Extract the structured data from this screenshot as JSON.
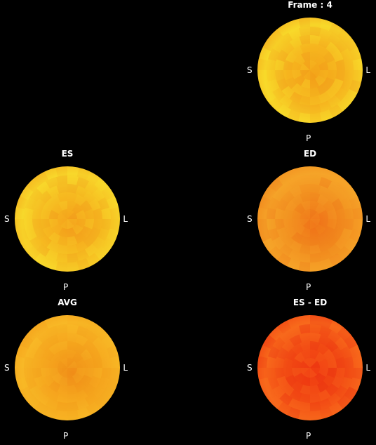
{
  "panels": [
    {
      "id": "frame",
      "title": "Frame : 4",
      "labels": {
        "s": "S",
        "l": "L",
        "p": "P"
      },
      "colors": {
        "base": "#f6b51f",
        "light": "#f8da2a",
        "dark": "#f09a1c",
        "hot": "#f4a018"
      }
    },
    {
      "id": "es",
      "title": "ES",
      "labels": {
        "s": "S",
        "l": "L",
        "p": "P"
      },
      "colors": {
        "base": "#f6b820",
        "light": "#f8d82b",
        "dark": "#f1a01c",
        "hot": "#f59a1a"
      }
    },
    {
      "id": "ed",
      "title": "ED",
      "labels": {
        "s": "S",
        "l": "L",
        "p": "P"
      },
      "colors": {
        "base": "#f28e1f",
        "light": "#f6a429",
        "dark": "#ee7a1a",
        "hot": "#f07018"
      }
    },
    {
      "id": "avg",
      "title": "AVG",
      "labels": {
        "s": "S",
        "l": "L",
        "p": "P"
      },
      "colors": {
        "base": "#f6a61e",
        "light": "#f8b826",
        "dark": "#f29a1a",
        "hot": "#f08a18"
      }
    },
    {
      "id": "diff",
      "title": "ES - ED",
      "labels": {
        "s": "S",
        "l": "L",
        "p": "P"
      },
      "colors": {
        "base": "#f24a14",
        "light": "#f86a1c",
        "dark": "#e82e10",
        "hot": "#f03a12"
      }
    }
  ]
}
